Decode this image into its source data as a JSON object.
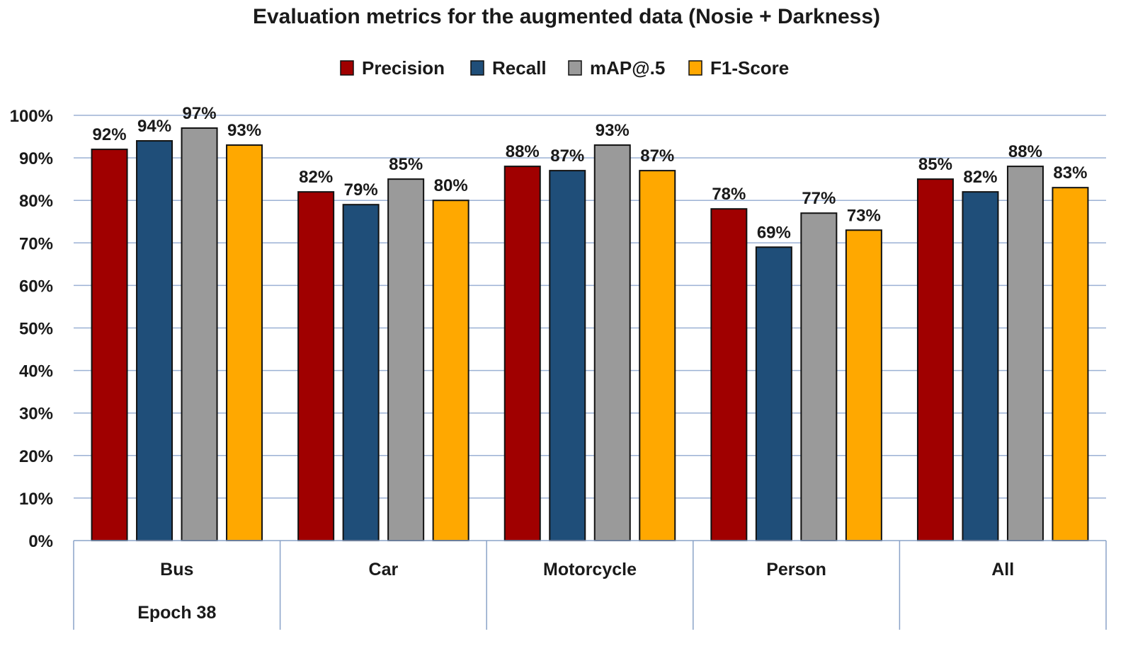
{
  "chart_data": {
    "type": "bar",
    "title": "Evaluation metrics for the augmented data (Nosie + Darkness)",
    "categories": [
      "Bus",
      "Car",
      "Motorcycle",
      "Person",
      "All"
    ],
    "group_label": "Epoch 38",
    "series": [
      {
        "name": "Precision",
        "color": "#a00000",
        "values": [
          92,
          82,
          88,
          78,
          85
        ],
        "labels": [
          "92%",
          "82%",
          "88%",
          "78%",
          "85%"
        ]
      },
      {
        "name": "Recall",
        "color": "#1f4e79",
        "values": [
          94,
          79,
          87,
          69,
          82
        ],
        "labels": [
          "94%",
          "79%",
          "87%",
          "69%",
          "82%"
        ]
      },
      {
        "name": "mAP@.5",
        "color": "#9a9a9a",
        "values": [
          97,
          85,
          93,
          77,
          88
        ],
        "labels": [
          "97%",
          "85%",
          "93%",
          "77%",
          "88%"
        ]
      },
      {
        "name": "F1-Score",
        "color": "#ffa800",
        "values": [
          93,
          80,
          87,
          73,
          83
        ],
        "labels": [
          "93%",
          "80%",
          "87%",
          "73%",
          "83%"
        ]
      }
    ],
    "y_ticks": [
      "0%",
      "10%",
      "20%",
      "30%",
      "40%",
      "50%",
      "60%",
      "70%",
      "80%",
      "90%",
      "100%"
    ],
    "ylim": [
      0,
      100
    ],
    "grid": true,
    "legend_position": "top-center",
    "gridline_color": "#9bb1d4"
  }
}
